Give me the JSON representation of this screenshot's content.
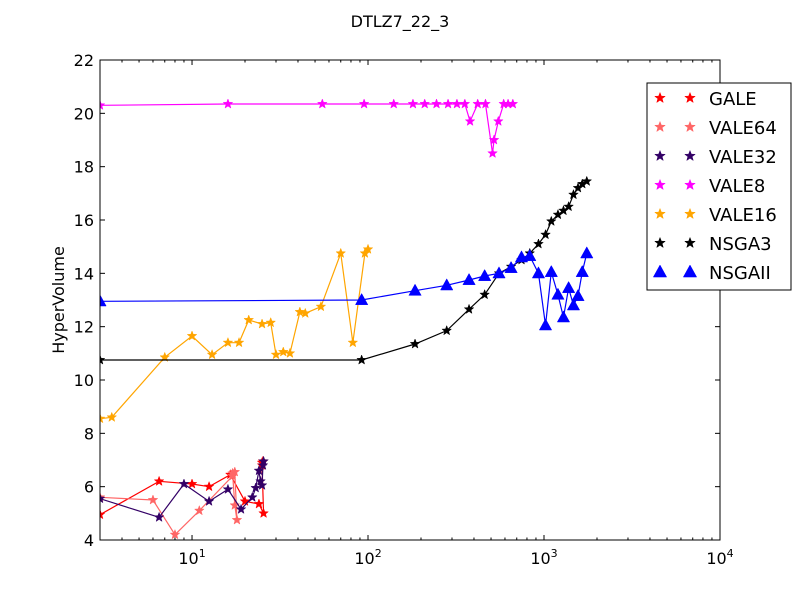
{
  "chart_data": {
    "type": "line",
    "title": "DTLZ7_22_3",
    "xlabel": "",
    "ylabel": "HyperVolume",
    "xscale": "log",
    "xlim": [
      3,
      10000
    ],
    "ylim": [
      4,
      22
    ],
    "yticks": [
      "4",
      "6",
      "8",
      "10",
      "12",
      "14",
      "16",
      "18",
      "20",
      "22"
    ],
    "xticks": [
      {
        "value": 10,
        "base": "10",
        "exp": "1"
      },
      {
        "value": 100,
        "base": "10",
        "exp": "2"
      },
      {
        "value": 1000,
        "base": "10",
        "exp": "3"
      },
      {
        "value": 10000,
        "base": "10",
        "exp": "4"
      }
    ],
    "grid": false,
    "legend_position": "upper-right",
    "series": [
      {
        "name": "GALE",
        "color": "#ff0000",
        "marker": "star",
        "x": [
          3,
          6.5,
          10,
          12.5,
          16.5,
          20,
          24,
          25.5,
          25,
          25.3,
          25
        ],
        "y": [
          4.95,
          6.2,
          6.1,
          6.0,
          6.45,
          5.45,
          5.35,
          5.0,
          6.8,
          6.95,
          6.9
        ]
      },
      {
        "name": "VALE64",
        "color": "#ff6666",
        "marker": "star",
        "x": [
          3,
          6,
          8,
          11,
          17,
          17.5,
          18,
          17.5,
          17
        ],
        "y": [
          5.6,
          5.5,
          4.2,
          5.1,
          6.4,
          6.55,
          4.75,
          5.3,
          6.5
        ]
      },
      {
        "name": "VALE32",
        "color": "#330066",
        "marker": "star",
        "x": [
          3,
          6.5,
          9,
          12.5,
          16,
          19,
          22,
          23,
          24,
          24.5,
          25,
          25.3,
          25.5
        ],
        "y": [
          5.55,
          4.85,
          6.1,
          5.45,
          5.9,
          5.15,
          5.6,
          5.95,
          6.6,
          6.2,
          6.05,
          6.8,
          6.95
        ]
      },
      {
        "name": "VALE8",
        "color": "#ff00ff",
        "marker": "star",
        "x": [
          3,
          16,
          55,
          95,
          140,
          180,
          210,
          245,
          285,
          320,
          355,
          380,
          420,
          465,
          510,
          520,
          550,
          590,
          625,
          665
        ],
        "y": [
          20.3,
          20.35,
          20.35,
          20.35,
          20.35,
          20.35,
          20.35,
          20.35,
          20.35,
          20.35,
          20.35,
          19.7,
          20.35,
          20.35,
          18.5,
          19.0,
          19.7,
          20.35,
          20.35,
          20.35
        ]
      },
      {
        "name": "VALE16",
        "color": "#ffa500",
        "marker": "star",
        "x": [
          3,
          3.5,
          7,
          10,
          13,
          16,
          18.5,
          21,
          25,
          28,
          30,
          33,
          36,
          41,
          44,
          54,
          70,
          82,
          96,
          100
        ],
        "y": [
          8.55,
          8.6,
          10.85,
          11.65,
          10.95,
          11.4,
          11.4,
          12.25,
          12.1,
          12.15,
          10.95,
          11.05,
          11.0,
          12.55,
          12.5,
          12.75,
          14.75,
          11.4,
          14.75,
          14.9
        ]
      },
      {
        "name": "NSGA3",
        "color": "#000000",
        "marker": "star",
        "x": [
          3,
          92,
          185,
          280,
          375,
          460,
          555,
          650,
          745,
          830,
          930,
          1020,
          1100,
          1200,
          1290,
          1380,
          1470,
          1560,
          1650,
          1750
        ],
        "y": [
          10.75,
          10.75,
          11.35,
          11.85,
          12.65,
          13.2,
          14.0,
          14.25,
          14.5,
          14.75,
          15.1,
          15.45,
          15.95,
          16.2,
          16.35,
          16.5,
          16.95,
          17.2,
          17.35,
          17.45
        ]
      },
      {
        "name": "NSGAII",
        "color": "#0000ff",
        "marker": "triangle",
        "x": [
          3,
          92,
          185,
          280,
          375,
          460,
          555,
          650,
          745,
          830,
          930,
          1020,
          1100,
          1200,
          1290,
          1380,
          1470,
          1560,
          1650,
          1750
        ],
        "y": [
          12.95,
          13.0,
          13.35,
          13.55,
          13.75,
          13.9,
          14.0,
          14.2,
          14.6,
          14.65,
          14.0,
          12.05,
          14.05,
          13.2,
          12.35,
          13.45,
          12.8,
          13.15,
          14.05,
          14.75
        ]
      }
    ]
  }
}
